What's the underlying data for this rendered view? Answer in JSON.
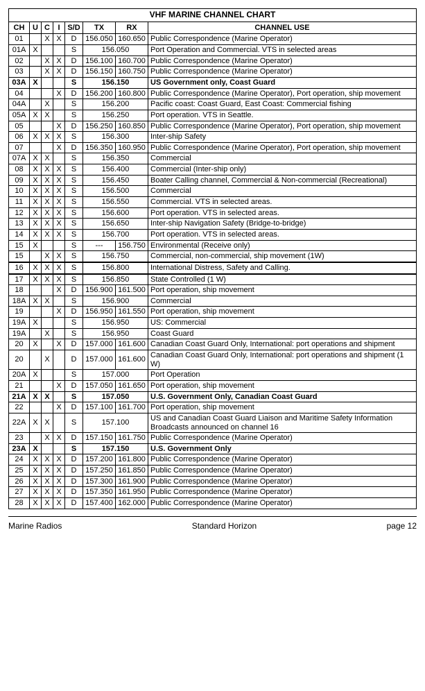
{
  "title": "VHF MARINE CHANNEL CHART",
  "headers": {
    "ch": "CH",
    "u": "U",
    "c": "C",
    "i": "I",
    "sd": "S/D",
    "tx": "TX",
    "rx": "RX",
    "use": "CHANNEL USE"
  },
  "rows": [
    {
      "ch": "01",
      "u": "",
      "c": "X",
      "i": "X",
      "sd": "D",
      "tx": "156.050",
      "rx": "160.650",
      "use": "Public Correspondence (Marine Operator)",
      "merged": false,
      "bold": false,
      "hl": false
    },
    {
      "ch": "01A",
      "u": "X",
      "c": "",
      "i": "",
      "sd": "S",
      "tx": "156.050",
      "rx": "",
      "use": "Port Operation and Commercial. VTS in selected areas",
      "merged": true,
      "bold": false,
      "hl": false
    },
    {
      "ch": "02",
      "u": "",
      "c": "X",
      "i": "X",
      "sd": "D",
      "tx": "156.100",
      "rx": "160.700",
      "use": "Public Correspondence (Marine Operator)",
      "merged": false,
      "bold": false,
      "hl": false
    },
    {
      "ch": "03",
      "u": "",
      "c": "X",
      "i": "X",
      "sd": "D",
      "tx": "156.150",
      "rx": "160.750",
      "use": "Public Correspondence (Marine Operator)",
      "merged": false,
      "bold": false,
      "hl": false
    },
    {
      "ch": "03A",
      "u": "X",
      "c": "",
      "i": "",
      "sd": "S",
      "tx": "156.150",
      "rx": "",
      "use": "US Government only, Coast Guard",
      "merged": true,
      "bold": true,
      "hl": false
    },
    {
      "ch": "04",
      "u": "",
      "c": "",
      "i": "X",
      "sd": "D",
      "tx": "156.200",
      "rx": "160.800",
      "use": "Public Correspondence (Marine Operator), Port operation, ship movement",
      "merged": false,
      "bold": false,
      "hl": false
    },
    {
      "ch": "04A",
      "u": "",
      "c": "X",
      "i": "",
      "sd": "S",
      "tx": "156.200",
      "rx": "",
      "use": "Pacific coast: Coast Guard, East Coast: Commercial fishing",
      "merged": true,
      "bold": false,
      "hl": false
    },
    {
      "ch": "05A",
      "u": "X",
      "c": "X",
      "i": "",
      "sd": "S",
      "tx": "156.250",
      "rx": "",
      "use": "Port operation. VTS in Seattle.",
      "merged": true,
      "bold": false,
      "hl": false
    },
    {
      "ch": "05",
      "u": "",
      "c": "",
      "i": "X",
      "sd": "D",
      "tx": "156.250",
      "rx": "160.850",
      "use": "Public Correspondence (Marine Operator), Port operation, ship movement",
      "merged": false,
      "bold": false,
      "hl": false
    },
    {
      "ch": "06",
      "u": "X",
      "c": "X",
      "i": "X",
      "sd": "S",
      "tx": "156.300",
      "rx": "",
      "use": "Inter-ship Safety",
      "merged": true,
      "bold": false,
      "hl": false
    },
    {
      "ch": "07",
      "u": "",
      "c": "",
      "i": "X",
      "sd": "D",
      "tx": "156.350",
      "rx": "160.950",
      "use": "Public Correspondence (Marine Operator), Port operation, ship movement",
      "merged": false,
      "bold": false,
      "hl": false
    },
    {
      "ch": "07A",
      "u": "X",
      "c": "X",
      "i": "",
      "sd": "S",
      "tx": "156.350",
      "rx": "",
      "use": "Commercial",
      "merged": true,
      "bold": false,
      "hl": false
    },
    {
      "ch": "08",
      "u": "X",
      "c": "X",
      "i": "X",
      "sd": "S",
      "tx": "156.400",
      "rx": "",
      "use": "Commercial (Inter-ship only)",
      "merged": true,
      "bold": false,
      "hl": false
    },
    {
      "ch": "09",
      "u": "X",
      "c": "X",
      "i": "X",
      "sd": "S",
      "tx": "156.450",
      "rx": "",
      "use": "Boater Calling channel, Commercial & Non-commercial (Recreational)",
      "merged": true,
      "bold": false,
      "hl": false
    },
    {
      "ch": "10",
      "u": "X",
      "c": "X",
      "i": "X",
      "sd": "S",
      "tx": "156.500",
      "rx": "",
      "use": "Commercial",
      "merged": true,
      "bold": false,
      "hl": false
    },
    {
      "ch": "11",
      "u": "X",
      "c": "X",
      "i": "X",
      "sd": "S",
      "tx": "156.550",
      "rx": "",
      "use": "Commercial.  VTS in selected areas.",
      "merged": true,
      "bold": false,
      "hl": false
    },
    {
      "ch": "12",
      "u": "X",
      "c": "X",
      "i": "X",
      "sd": "S",
      "tx": "156.600",
      "rx": "",
      "use": "Port operation.  VTS in selected areas.",
      "merged": true,
      "bold": false,
      "hl": false
    },
    {
      "ch": "13",
      "u": "X",
      "c": "X",
      "i": "X",
      "sd": "S",
      "tx": "156.650",
      "rx": "",
      "use": "Inter-ship Navigation Safety (Bridge-to-bridge)",
      "merged": true,
      "bold": false,
      "hl": false
    },
    {
      "ch": "14",
      "u": "X",
      "c": "X",
      "i": "X",
      "sd": "S",
      "tx": "156.700",
      "rx": "",
      "use": "Port operation.  VTS in selected areas.",
      "merged": true,
      "bold": false,
      "hl": false
    },
    {
      "ch": "15",
      "u": "X",
      "c": "",
      "i": "",
      "sd": "S",
      "tx": "---",
      "rx": "156.750",
      "use": "Environmental (Receive only)",
      "merged": false,
      "bold": false,
      "hl": false
    },
    {
      "ch": "15",
      "u": "",
      "c": "X",
      "i": "X",
      "sd": "S",
      "tx": "156.750",
      "rx": "",
      "use": "Commercial, non-commercial, ship movement (1W)",
      "merged": true,
      "bold": false,
      "hl": false
    },
    {
      "ch": "16",
      "u": "X",
      "c": "X",
      "i": "X",
      "sd": "S",
      "tx": "156.800",
      "rx": "",
      "use": "International Distress, Safety and Calling.",
      "merged": true,
      "bold": false,
      "hl": true
    },
    {
      "ch": "17",
      "u": "X",
      "c": "X",
      "i": "X",
      "sd": "S",
      "tx": "156.850",
      "rx": "",
      "use": "State Controlled (1 W)",
      "merged": true,
      "bold": false,
      "hl": false
    },
    {
      "ch": "18",
      "u": "",
      "c": "",
      "i": "X",
      "sd": "D",
      "tx": "156.900",
      "rx": "161.500",
      "use": "Port operation, ship movement",
      "merged": false,
      "bold": false,
      "hl": false
    },
    {
      "ch": "18A",
      "u": "X",
      "c": "X",
      "i": "",
      "sd": "S",
      "tx": "156.900",
      "rx": "",
      "use": "Commercial",
      "merged": true,
      "bold": false,
      "hl": false
    },
    {
      "ch": "19",
      "u": "",
      "c": "",
      "i": "X",
      "sd": "D",
      "tx": "156.950",
      "rx": "161.550",
      "use": "Port operation, ship movement",
      "merged": false,
      "bold": false,
      "hl": false
    },
    {
      "ch": "19A",
      "u": "X",
      "c": "",
      "i": "",
      "sd": "S",
      "tx": "156.950",
      "rx": "",
      "use": "US: Commercial",
      "merged": true,
      "bold": false,
      "hl": false
    },
    {
      "ch": "19A",
      "u": "",
      "c": "X",
      "i": "",
      "sd": "S",
      "tx": "156.950",
      "rx": "",
      "use": "Coast  Guard",
      "merged": true,
      "bold": false,
      "hl": false
    },
    {
      "ch": "20",
      "u": "X",
      "c": "",
      "i": "X",
      "sd": "D",
      "tx": "157.000",
      "rx": "161.600",
      "use": "Canadian Coast Guard Only, International: port operations and shipment",
      "merged": false,
      "bold": false,
      "hl": false
    },
    {
      "ch": "20",
      "u": "",
      "c": "X",
      "i": "",
      "sd": "D",
      "tx": "157.000",
      "rx": "161.600",
      "use": "Canadian Coast Guard Only, International: port operations and shipment (1 W)",
      "merged": false,
      "bold": false,
      "hl": false
    },
    {
      "ch": "20A",
      "u": "X",
      "c": "",
      "i": "",
      "sd": "S",
      "tx": "157.000",
      "rx": "",
      "use": "Port Operation",
      "merged": true,
      "bold": false,
      "hl": false
    },
    {
      "ch": "21",
      "u": "",
      "c": "",
      "i": "X",
      "sd": "D",
      "tx": "157.050",
      "rx": "161.650",
      "use": "Port operation, ship movement",
      "merged": false,
      "bold": false,
      "hl": false
    },
    {
      "ch": "21A",
      "u": "X",
      "c": "X",
      "i": "",
      "sd": "S",
      "tx": "157.050",
      "rx": "",
      "use": "U.S. Government Only, Canadian Coast Guard",
      "merged": true,
      "bold": true,
      "hl": false
    },
    {
      "ch": "22",
      "u": "",
      "c": "",
      "i": "X",
      "sd": "D",
      "tx": "157.100",
      "rx": "161.700",
      "use": "Port operation, ship movement",
      "merged": false,
      "bold": false,
      "hl": false
    },
    {
      "ch": "22A",
      "u": "X",
      "c": "X",
      "i": "",
      "sd": "S",
      "tx": "157.100",
      "rx": "",
      "use": "US and Canadian Coast  Guard Liaison and Maritime Safety Information Broadcasts announced on channel 16",
      "merged": true,
      "bold": false,
      "hl": false
    },
    {
      "ch": "23",
      "u": "",
      "c": "X",
      "i": "X",
      "sd": "D",
      "tx": "157.150",
      "rx": "161.750",
      "use": "Public Correspondence (Marine Operator)",
      "merged": false,
      "bold": false,
      "hl": false
    },
    {
      "ch": "23A",
      "u": "X",
      "c": "",
      "i": "",
      "sd": "S",
      "tx": "157.150",
      "rx": "",
      "use": "U.S. Government Only",
      "merged": true,
      "bold": true,
      "hl": false
    },
    {
      "ch": "24",
      "u": "X",
      "c": "X",
      "i": "X",
      "sd": "D",
      "tx": "157.200",
      "rx": "161.800",
      "use": "Public Correspondence (Marine Operator)",
      "merged": false,
      "bold": false,
      "hl": false
    },
    {
      "ch": "25",
      "u": "X",
      "c": "X",
      "i": "X",
      "sd": "D",
      "tx": "157.250",
      "rx": "161.850",
      "use": "Public Correspondence (Marine Operator)",
      "merged": false,
      "bold": false,
      "hl": false
    },
    {
      "ch": "26",
      "u": "X",
      "c": "X",
      "i": "X",
      "sd": "D",
      "tx": "157.300",
      "rx": "161.900",
      "use": "Public Correspondence (Marine Operator)",
      "merged": false,
      "bold": false,
      "hl": false
    },
    {
      "ch": "27",
      "u": "X",
      "c": "X",
      "i": "X",
      "sd": "D",
      "tx": "157.350",
      "rx": "161.950",
      "use": "Public Correspondence (Marine Operator)",
      "merged": false,
      "bold": false,
      "hl": false
    },
    {
      "ch": "28",
      "u": "X",
      "c": "X",
      "i": "X",
      "sd": "D",
      "tx": "157.400",
      "rx": "162.000",
      "use": "Public Correspondence (Marine Operator)",
      "merged": false,
      "bold": false,
      "hl": false
    }
  ],
  "footer": {
    "left": "Marine Radios",
    "center": "Standard Horizon",
    "right": "page 12"
  }
}
